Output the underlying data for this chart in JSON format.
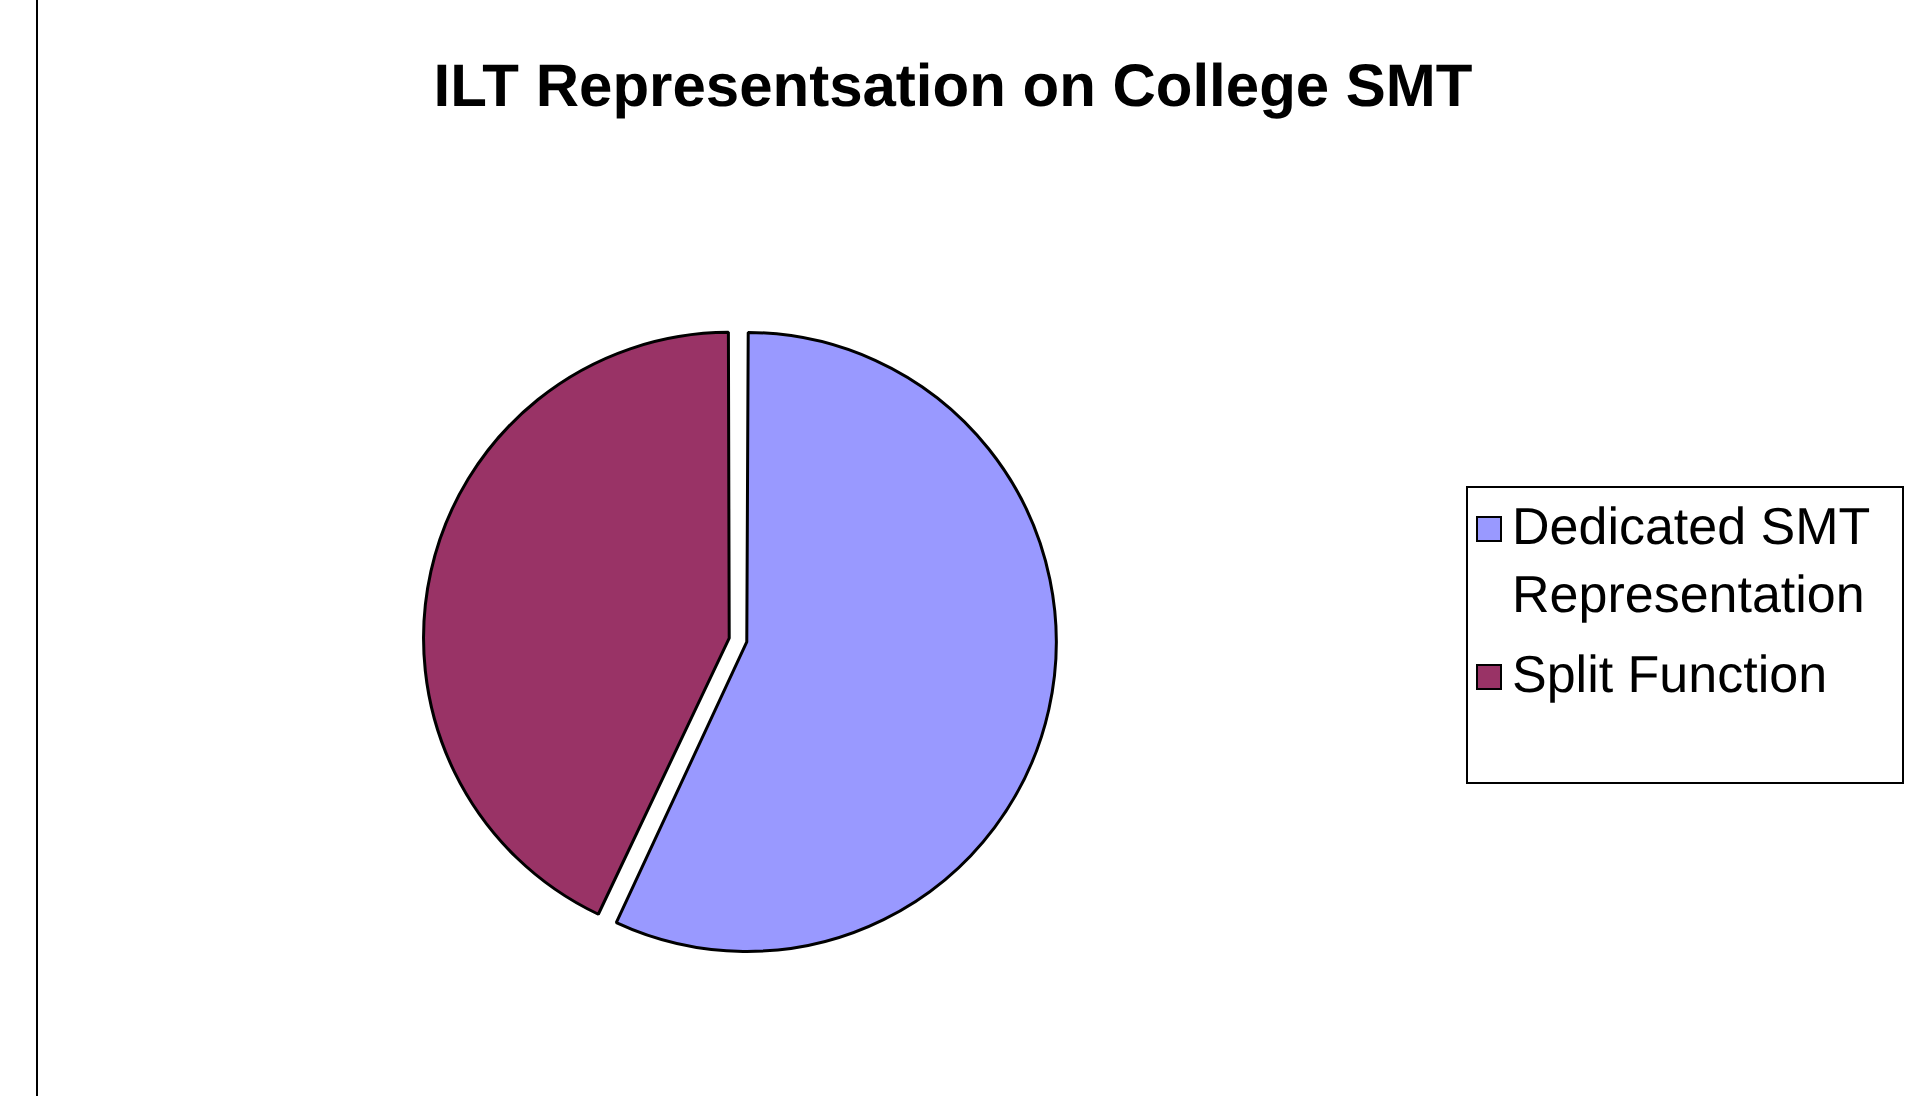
{
  "chart_data": {
    "type": "pie",
    "title": "ILT Representsation on College SMT",
    "categories": [
      "Dedicated SMT Representation",
      "Split Function"
    ],
    "values": [
      57,
      43
    ],
    "colors": [
      "#9999ff",
      "#993366"
    ],
    "legend": "right"
  }
}
